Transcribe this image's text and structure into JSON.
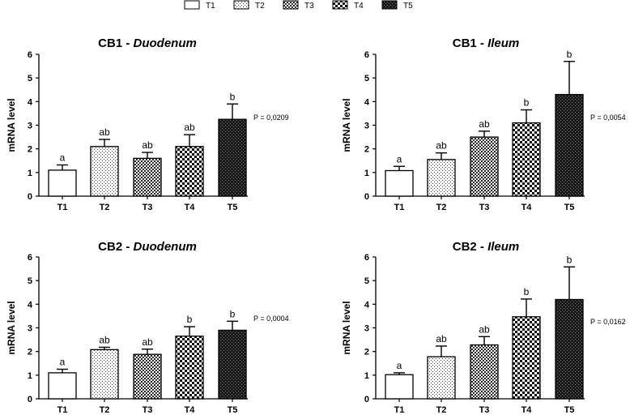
{
  "legend": [
    "T1",
    "T2",
    "T3",
    "T4",
    "T5"
  ],
  "pattern_colors": {
    "dark": "#1a1a1a",
    "bar_outline": "#000000",
    "background": "#ffffff"
  },
  "chart_data": [
    {
      "type": "bar",
      "title_prefix": "CB1 - ",
      "title_italic": "Duodenum",
      "categories": [
        "T1",
        "T2",
        "T3",
        "T4",
        "T5"
      ],
      "values": [
        1.1,
        2.1,
        1.6,
        2.1,
        3.25
      ],
      "errors": [
        0.22,
        0.3,
        0.25,
        0.5,
        0.65
      ],
      "significance": [
        "a",
        "ab",
        "ab",
        "ab",
        "b"
      ],
      "p_value": "P = 0,0209",
      "ylabel": "mRNA level",
      "ylim": [
        0,
        6
      ],
      "yticks": [
        "0",
        "1",
        "2",
        "3",
        "4",
        "5",
        "6"
      ]
    },
    {
      "type": "bar",
      "title_prefix": "CB1 - ",
      "title_italic": "Ileum",
      "categories": [
        "T1",
        "T2",
        "T3",
        "T4",
        "T5"
      ],
      "values": [
        1.08,
        1.55,
        2.5,
        3.1,
        4.3
      ],
      "errors": [
        0.18,
        0.28,
        0.25,
        0.55,
        1.4
      ],
      "significance": [
        "a",
        "ab",
        "ab",
        "b",
        "b"
      ],
      "p_value": "P = 0,0054",
      "ylabel": "mRNA level",
      "ylim": [
        0,
        6
      ],
      "yticks": [
        "0",
        "1",
        "2",
        "3",
        "4",
        "5",
        "6"
      ]
    },
    {
      "type": "bar",
      "title_prefix": "CB2 - ",
      "title_italic": "Duodenum",
      "categories": [
        "T1",
        "T2",
        "T3",
        "T4",
        "T5"
      ],
      "values": [
        1.1,
        2.08,
        1.88,
        2.65,
        2.9
      ],
      "errors": [
        0.15,
        0.1,
        0.22,
        0.4,
        0.38
      ],
      "significance": [
        "a",
        "ab",
        "ab",
        "b",
        "b"
      ],
      "p_value": "P = 0,0004",
      "ylabel": "mRNA level",
      "ylim": [
        0,
        6
      ],
      "yticks": [
        "0",
        "1",
        "2",
        "3",
        "4",
        "5",
        "6"
      ]
    },
    {
      "type": "bar",
      "title_prefix": "CB2 - ",
      "title_italic": "Ileum",
      "categories": [
        "T1",
        "T2",
        "T3",
        "T4",
        "T5"
      ],
      "values": [
        1.02,
        1.78,
        2.28,
        3.47,
        4.2
      ],
      "errors": [
        0.08,
        0.45,
        0.35,
        0.75,
        1.38
      ],
      "significance": [
        "a",
        "ab",
        "ab",
        "b",
        "b"
      ],
      "p_value": "P = 0,0162",
      "ylabel": "mRNA level",
      "ylim": [
        0,
        6
      ],
      "yticks": [
        "0",
        "1",
        "2",
        "3",
        "4",
        "5",
        "6"
      ]
    }
  ]
}
